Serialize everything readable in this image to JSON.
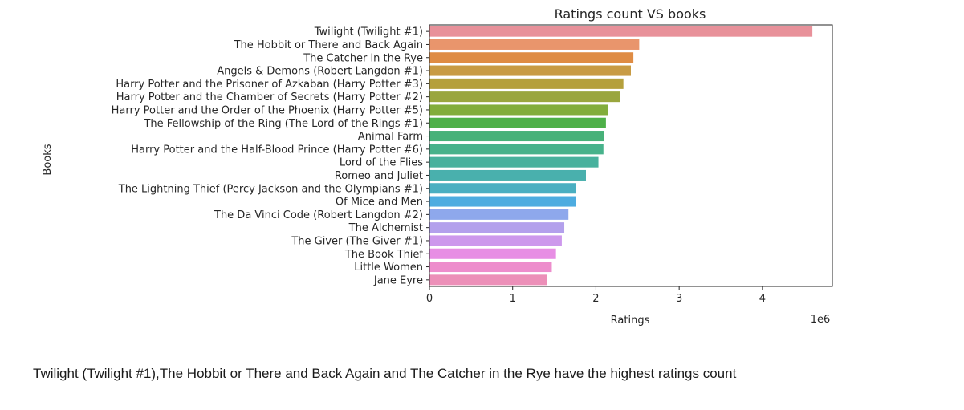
{
  "chart_data": {
    "type": "bar",
    "orientation": "horizontal",
    "title": "Ratings count VS books",
    "xlabel": "Ratings",
    "ylabel": "Books",
    "x_scale_label": "1e6",
    "xlim": [
      0,
      4.84
    ],
    "x_ticks": [
      0,
      1,
      2,
      3,
      4
    ],
    "grid": false,
    "categories": [
      "Twilight (Twilight  #1)",
      "The Hobbit  or There and Back Again",
      "The Catcher in the Rye",
      "Angels & Demons (Robert Langdon  #1)",
      "Harry Potter and the Prisoner of Azkaban (Harry Potter  #3)",
      "Harry Potter and the Chamber of Secrets (Harry Potter  #2)",
      "Harry Potter and the Order of the Phoenix (Harry Potter  #5)",
      "The Fellowship of the Ring (The Lord of the Rings  #1)",
      "Animal Farm",
      "Harry Potter and the Half-Blood Prince (Harry Potter  #6)",
      "Lord of the Flies",
      "Romeo and Juliet",
      "The Lightning Thief (Percy Jackson and the Olympians  #1)",
      "Of Mice and Men",
      "The Da Vinci Code (Robert Langdon  #2)",
      "The Alchemist",
      "The Giver (The Giver  #1)",
      "The Book Thief",
      "Little Women",
      "Jane Eyre"
    ],
    "values": [
      4.6,
      2.52,
      2.45,
      2.42,
      2.33,
      2.29,
      2.15,
      2.12,
      2.1,
      2.09,
      2.03,
      1.88,
      1.76,
      1.76,
      1.67,
      1.62,
      1.59,
      1.52,
      1.47,
      1.41
    ],
    "colors": [
      "#e8919a",
      "#e9956c",
      "#df8c44",
      "#c89b44",
      "#b5a03c",
      "#9aa63e",
      "#82ad3b",
      "#4eb048",
      "#47b179",
      "#47b28b",
      "#48b19d",
      "#49b0ad",
      "#4aafc1",
      "#4dace0",
      "#8ea8ec",
      "#b3a0ec",
      "#cd98ec",
      "#e78ee4",
      "#ed8dcc",
      "#ec8fb8"
    ]
  },
  "caption": "Twilight (Twilight #1),The Hobbit or There and Back Again and The Catcher in the Rye have the highest ratings count"
}
